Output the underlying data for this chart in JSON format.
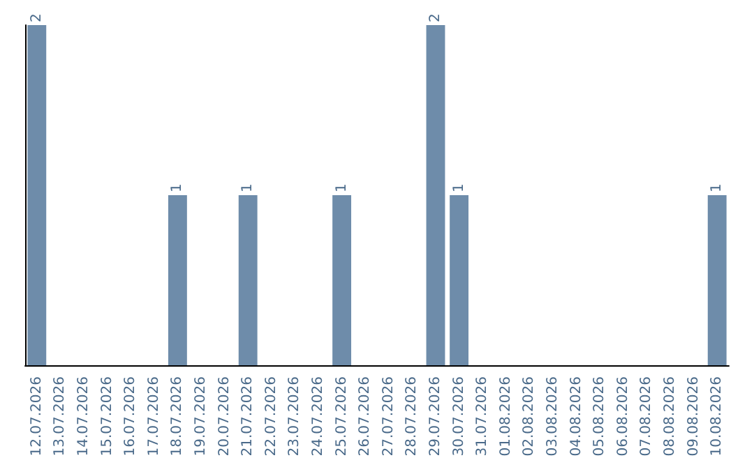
{
  "chart_data": {
    "type": "bar",
    "categories": [
      "12.07.2026",
      "13.07.2026",
      "14.07.2026",
      "15.07.2026",
      "16.07.2026",
      "17.07.2026",
      "18.07.2026",
      "19.07.2026",
      "20.07.2026",
      "21.07.2026",
      "22.07.2026",
      "23.07.2026",
      "24.07.2026",
      "25.07.2026",
      "26.07.2026",
      "27.07.2026",
      "28.07.2026",
      "29.07.2026",
      "30.07.2026",
      "31.07.2026",
      "01.08.2026",
      "02.08.2026",
      "03.08.2026",
      "04.08.2026",
      "05.08.2026",
      "06.08.2026",
      "07.08.2026",
      "08.08.2026",
      "09.08.2026",
      "10.08.2026"
    ],
    "values": [
      2,
      0,
      0,
      0,
      0,
      0,
      1,
      0,
      0,
      1,
      0,
      0,
      0,
      1,
      0,
      0,
      0,
      2,
      1,
      0,
      0,
      0,
      0,
      0,
      0,
      0,
      0,
      0,
      0,
      1
    ],
    "value_labels": [
      "2",
      null,
      null,
      null,
      null,
      null,
      "1",
      null,
      null,
      "1",
      null,
      null,
      null,
      "1",
      null,
      null,
      null,
      "2",
      "1",
      null,
      null,
      null,
      null,
      null,
      null,
      null,
      null,
      null,
      null,
      "1"
    ],
    "color": "#6e8caa"
  }
}
